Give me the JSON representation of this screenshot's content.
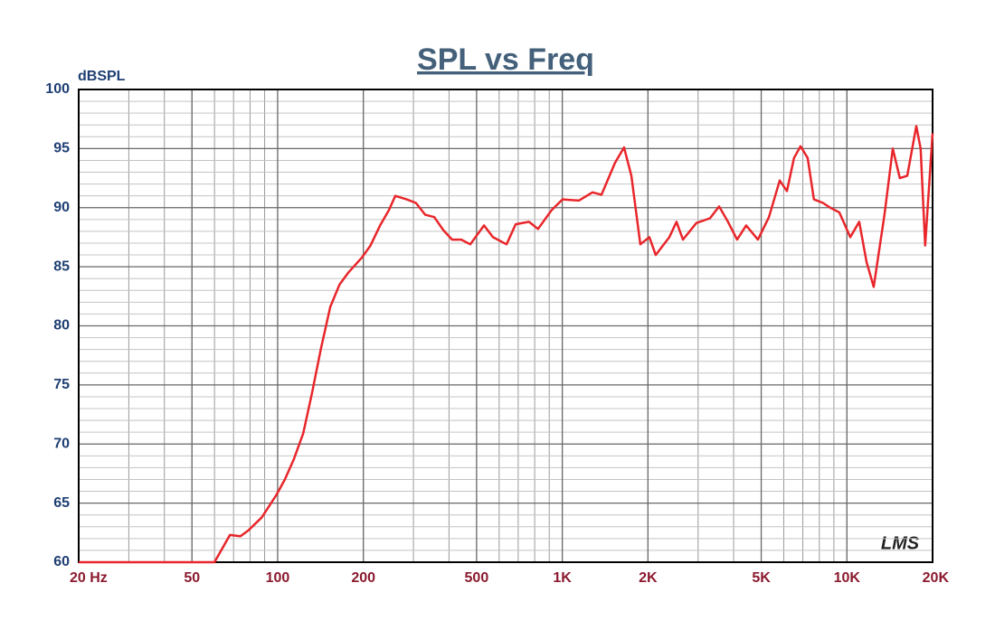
{
  "chart_data": {
    "type": "line",
    "title": "SPL vs Freq",
    "ylabel": "dBSPL",
    "annotation": "LMS",
    "log_x": true,
    "grid": true,
    "minor_grid": true,
    "color": "#e8262b",
    "xlim": [
      20,
      20000
    ],
    "ylim": [
      60,
      100
    ],
    "xticks": [
      {
        "value": 20,
        "label": "20  Hz"
      },
      50,
      100,
      200,
      500,
      {
        "value": 1000,
        "label": "1K"
      },
      {
        "value": 2000,
        "label": "2K"
      },
      {
        "value": 5000,
        "label": "5K"
      },
      {
        "value": 10000,
        "label": "10K"
      },
      {
        "value": 20000,
        "label": "20K"
      }
    ],
    "yticks": [
      60,
      65,
      70,
      75,
      80,
      85,
      90,
      95,
      100
    ],
    "x": [
      20,
      60,
      68,
      74,
      79,
      88,
      99,
      106,
      114,
      123,
      132,
      142,
      153,
      165,
      177,
      198,
      212,
      229,
      246,
      259,
      284,
      306,
      330,
      355,
      382,
      410,
      442,
      475,
      531,
      571,
      637,
      686,
      764,
      822,
      918,
      1002,
      1143,
      1277,
      1374,
      1532,
      1648,
      1749,
      1880,
      2023,
      2129,
      2378,
      2519,
      2654,
      2960,
      3304,
      3557,
      3822,
      4113,
      4428,
      4867,
      5321,
      5809,
      6157,
      6520,
      6871,
      7280,
      7659,
      8240,
      8745,
      9405,
      10280,
      11050,
      11720,
      12420,
      13550,
      14490,
      15350,
      16290,
      17530,
      18160,
      18840,
      20000
    ],
    "values": [
      60,
      60,
      62.3,
      62.2,
      62.7,
      63.8,
      65.7,
      67.0,
      68.7,
      70.9,
      74.3,
      78.1,
      81.6,
      83.5,
      84.5,
      85.8,
      86.8,
      88.5,
      89.8,
      91.0,
      90.7,
      90.4,
      89.4,
      89.2,
      88.1,
      87.3,
      87.3,
      86.9,
      88.5,
      87.5,
      86.9,
      88.6,
      88.8,
      88.2,
      89.8,
      90.7,
      90.6,
      91.3,
      91.1,
      93.8,
      95.1,
      92.7,
      86.9,
      87.5,
      86.0,
      87.5,
      88.8,
      87.3,
      88.7,
      89.1,
      90.1,
      88.8,
      87.3,
      88.5,
      87.3,
      89.2,
      92.3,
      91.4,
      94.2,
      95.2,
      94.2,
      90.7,
      90.4,
      90.0,
      89.6,
      87.5,
      88.8,
      85.4,
      83.3,
      89.4,
      95.0,
      92.5,
      92.7,
      96.9,
      95.0,
      86.8,
      96.3
    ]
  }
}
